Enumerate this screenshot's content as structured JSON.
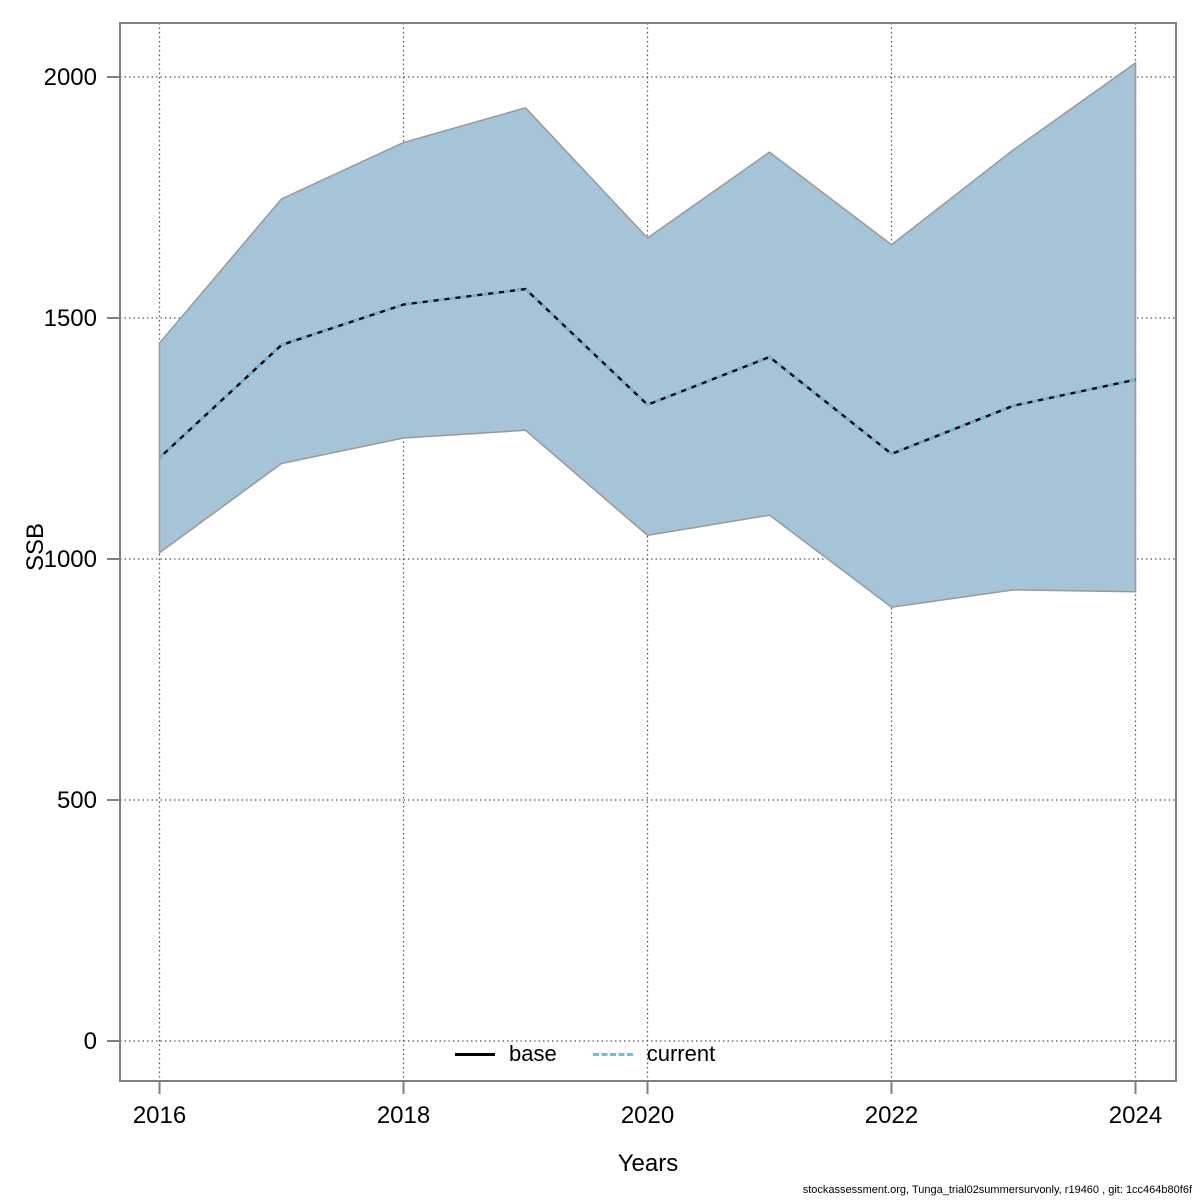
{
  "page": {
    "background": "#ffffff"
  },
  "footer": {
    "text": "stockassessment.org, Tunga_trial02summersurvonly, r19460 , git: 1cc464b80f6f"
  },
  "chart_data": {
    "type": "area",
    "title": "",
    "xlabel": "Years",
    "ylabel": "SSB",
    "x": [
      2016,
      2017,
      2018,
      2019,
      2020,
      2021,
      2022,
      2023,
      2024
    ],
    "series": [
      {
        "name": "current",
        "role": "median",
        "values": [
          1210,
          1444,
          1528,
          1560,
          1320,
          1419,
          1218,
          1318,
          1372
        ]
      },
      {
        "name": "current-ci-lower",
        "role": "band-lower",
        "values": [
          1013,
          1198,
          1251,
          1267,
          1049,
          1091,
          900,
          936,
          932
        ]
      },
      {
        "name": "current-ci-upper",
        "role": "band-upper",
        "values": [
          1448,
          1747,
          1864,
          1936,
          1666,
          1844,
          1652,
          1849,
          2029
        ]
      }
    ],
    "x_ticks": [
      2016,
      2018,
      2020,
      2022,
      2024
    ],
    "y_ticks": [
      0,
      500,
      1000,
      1500,
      2000
    ],
    "xlim": [
      2015.676,
      2024.332
    ],
    "ylim": [
      -83,
      2112
    ],
    "grid": true,
    "legend": {
      "position": "bottom-center",
      "entries": [
        {
          "label": "base",
          "style": "solid-black"
        },
        {
          "label": "current",
          "style": "dashed-blue"
        }
      ]
    },
    "colors": {
      "band_fill": "#a5c4d7",
      "band_edge": "#999999",
      "base_line": "#000000",
      "current_line": "#7ab8dc",
      "grid": "#555555",
      "axis": "#7f7f7f",
      "text": "#000000"
    }
  }
}
